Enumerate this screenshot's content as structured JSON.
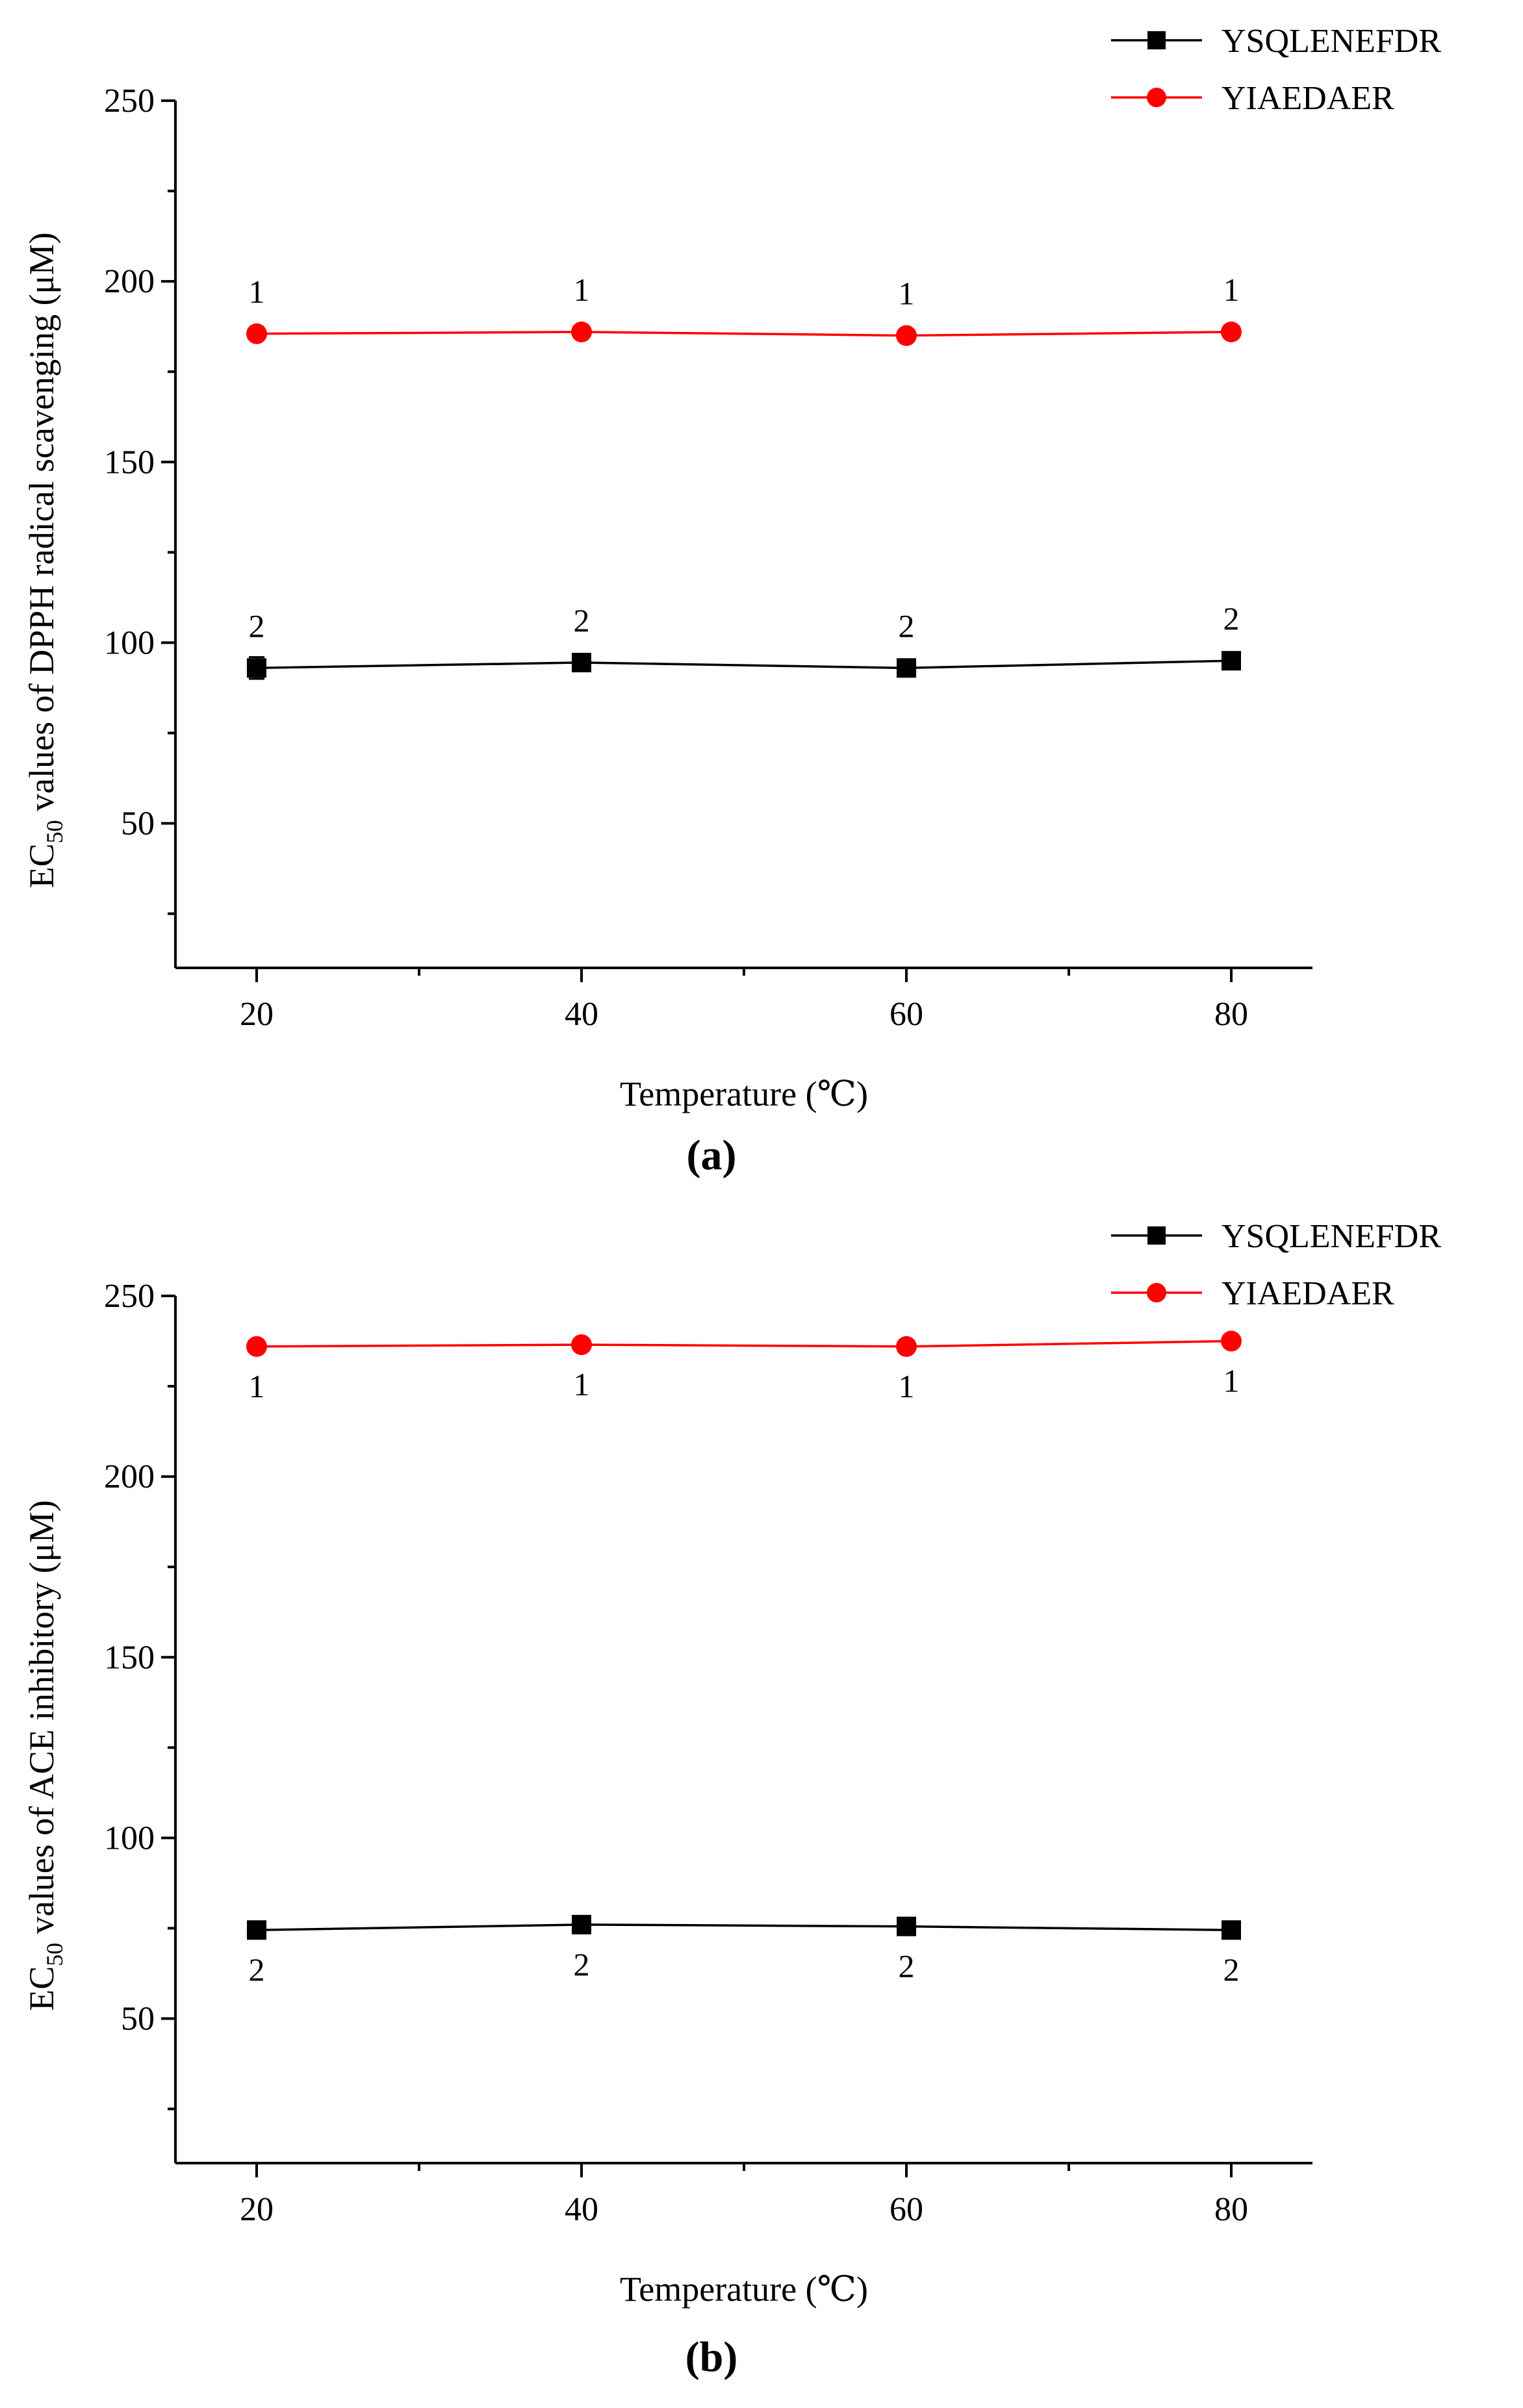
{
  "chart_data": [
    {
      "type": "line",
      "panel_label": "(a)",
      "xlabel": "Temperature (℃)",
      "ylabel_parts": {
        "before": "EC",
        "sub": "50",
        "after": " values of DPPH radical scavenging (μM)"
      },
      "x": [
        20,
        40,
        60,
        80
      ],
      "xticks": [
        20,
        40,
        60,
        80
      ],
      "xlim": [
        15,
        85
      ],
      "ylim": [
        10,
        250
      ],
      "yticks": [
        50,
        100,
        150,
        200,
        250
      ],
      "legend_position": "top-right",
      "series": [
        {
          "name": "YSQLENEFDR",
          "color": "#000000",
          "marker": "square",
          "values": [
            93,
            94.5,
            93,
            95
          ],
          "errors": [
            3,
            1.5,
            1.5,
            1.5
          ],
          "point_labels": [
            "2",
            "2",
            "2",
            "2"
          ],
          "label_position": "above"
        },
        {
          "name": "YIAEDAER",
          "color": "#ff0000",
          "marker": "circle",
          "values": [
            185.5,
            186,
            185,
            186
          ],
          "errors": [
            1,
            1,
            1,
            1
          ],
          "point_labels": [
            "1",
            "1",
            "1",
            "1"
          ],
          "label_position": "above"
        }
      ]
    },
    {
      "type": "line",
      "panel_label": "(b)",
      "xlabel": "Temperature (℃)",
      "ylabel_parts": {
        "before": "EC",
        "sub": "50",
        "after": " values of ACE inhibitory (μM)"
      },
      "x": [
        20,
        40,
        60,
        80
      ],
      "xticks": [
        20,
        40,
        60,
        80
      ],
      "xlim": [
        15,
        85
      ],
      "ylim": [
        10,
        250
      ],
      "yticks": [
        50,
        100,
        150,
        200,
        250
      ],
      "legend_position": "top-right",
      "series": [
        {
          "name": "YSQLENEFDR",
          "color": "#000000",
          "marker": "square",
          "values": [
            74.5,
            76,
            75.5,
            74.5
          ],
          "errors": [
            1,
            1,
            1,
            1
          ],
          "point_labels": [
            "2",
            "2",
            "2",
            "2"
          ],
          "label_position": "below"
        },
        {
          "name": "YIAEDAER",
          "color": "#ff0000",
          "marker": "circle",
          "values": [
            236,
            236.5,
            236,
            237.5
          ],
          "errors": [
            1,
            1,
            1,
            1
          ],
          "point_labels": [
            "1",
            "1",
            "1",
            "1"
          ],
          "label_position": "below"
        }
      ]
    }
  ]
}
